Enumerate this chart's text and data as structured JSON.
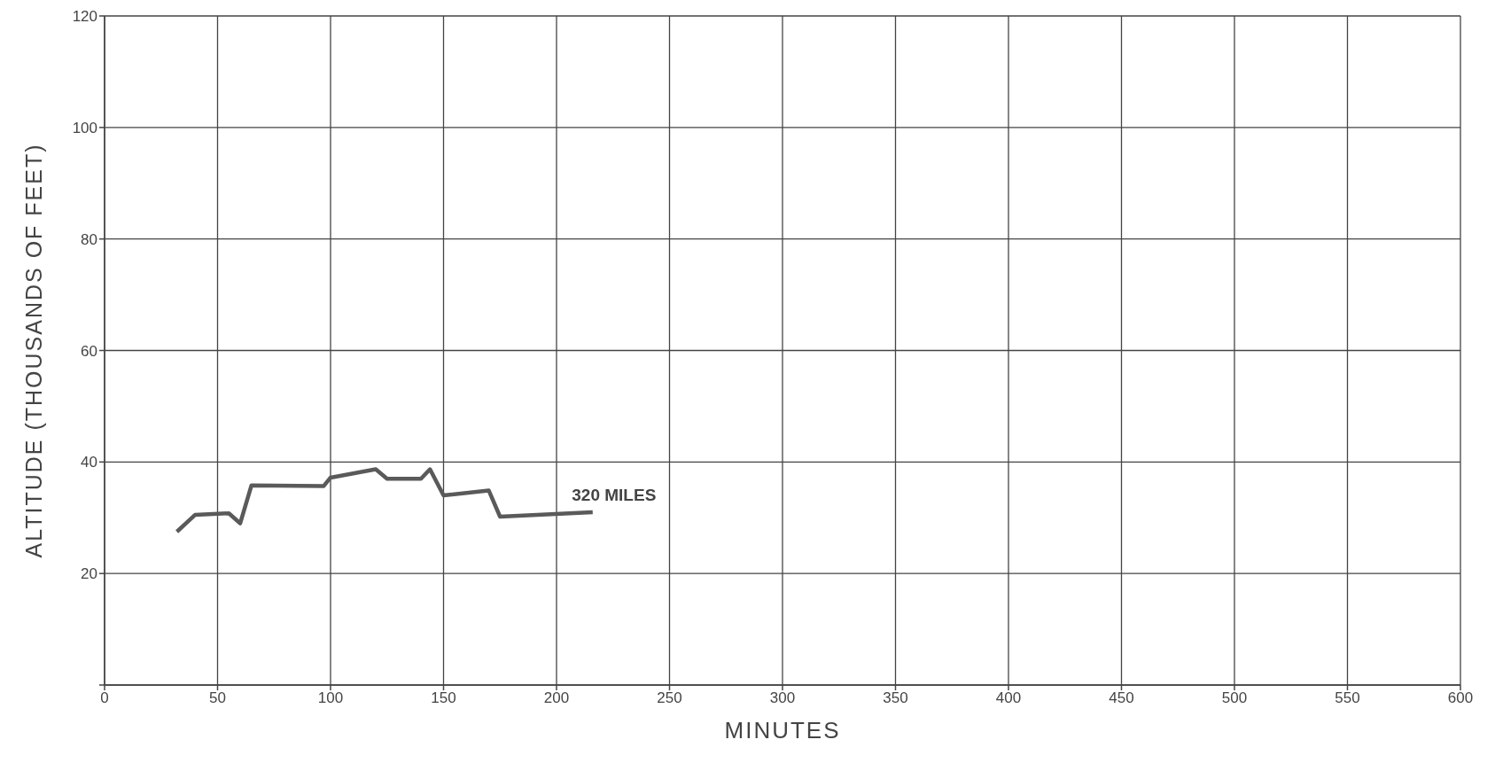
{
  "chart_data": {
    "type": "line",
    "xlabel": "MINUTES",
    "ylabel": "ALTITUDE (THOUSANDS OF FEET)",
    "x": [
      32,
      40,
      55,
      60,
      65,
      97,
      100,
      120,
      125,
      140,
      144,
      150,
      170,
      175,
      216
    ],
    "series": [
      {
        "color": "#5a5a5a",
        "values": [
          27.5,
          30.5,
          30.8,
          29,
          35.8,
          35.7,
          37.2,
          38.7,
          37,
          37,
          38.7,
          34,
          34.9,
          30.2,
          31
        ]
      }
    ],
    "annotations": [
      {
        "text": "320 MILES",
        "x": 216,
        "y": 31
      }
    ],
    "xlim": [
      0,
      600
    ],
    "xticks": [
      0,
      50,
      100,
      150,
      200,
      250,
      300,
      350,
      400,
      450,
      500,
      550,
      600
    ],
    "ylim": [
      0,
      120
    ],
    "yticks": [
      {
        "value": 0,
        "label": null
      },
      20,
      40,
      60,
      80,
      100,
      120
    ],
    "grid": true,
    "marker": "none",
    "line_style": "solid"
  }
}
